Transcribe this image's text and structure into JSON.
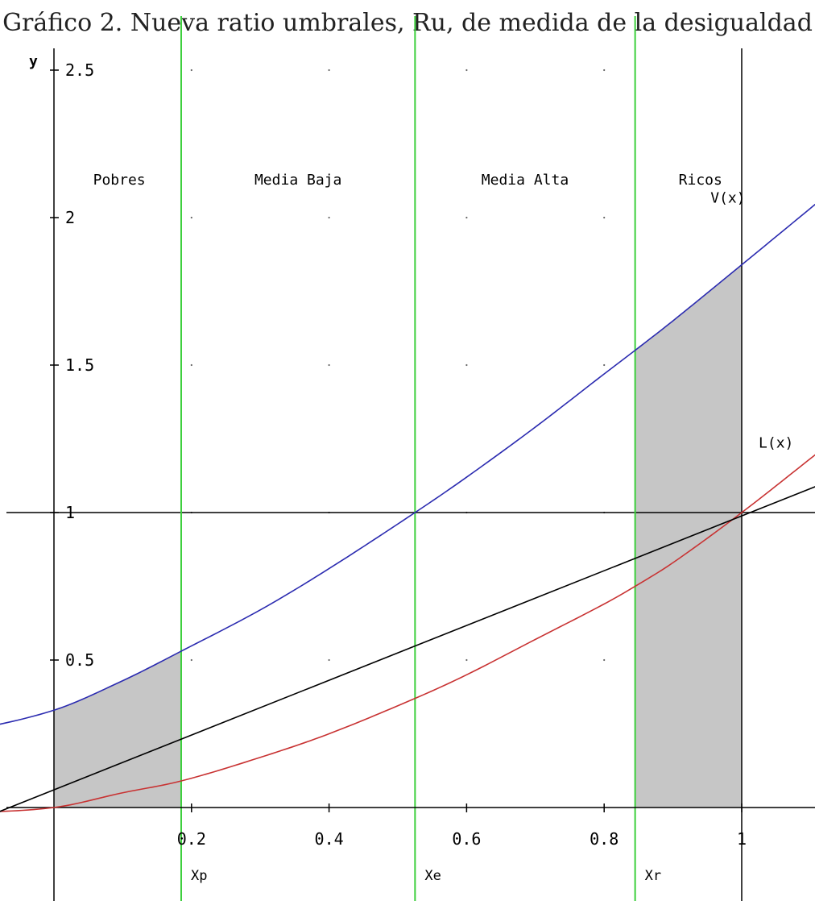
{
  "chart_data": {
    "type": "line",
    "title": "Gráfico 2. Nueva ratio umbrales, Ru, de medida de la desigualdad",
    "ylabel": "y",
    "xlabel": "",
    "xlim": [
      -0.14,
      1.12
    ],
    "ylim": [
      -0.25,
      2.62
    ],
    "grid": "dots",
    "x_ticks": [
      {
        "value": 0.2,
        "label": "0.2"
      },
      {
        "value": 0.4,
        "label": "0.4"
      },
      {
        "value": 0.6,
        "label": "0.6"
      },
      {
        "value": 0.8,
        "label": "0.8"
      },
      {
        "value": 1,
        "label": "1"
      }
    ],
    "y_ticks": [
      {
        "value": 0.5,
        "label": "0.5"
      },
      {
        "value": 1,
        "label": "1"
      },
      {
        "value": 1.5,
        "label": "1.5"
      },
      {
        "value": 2,
        "label": "2"
      },
      {
        "value": 2.5,
        "label": "2.5"
      }
    ],
    "thresholds": [
      {
        "name": "Xp",
        "x": 0.185
      },
      {
        "name": "Xe",
        "x": 0.525
      },
      {
        "name": "Xr",
        "x": 0.845
      }
    ],
    "regions": [
      {
        "label": "Pobres",
        "x": 0.095
      },
      {
        "label": "Media Baja",
        "x": 0.355
      },
      {
        "label": "Media Alta",
        "x": 0.685
      },
      {
        "label": "Ricos",
        "x": 0.94
      }
    ],
    "shaded_intervals": [
      [
        0,
        0.185
      ],
      [
        0.845,
        1
      ]
    ],
    "series": [
      {
        "name": "V(x)",
        "color": "#2b2bb0",
        "label_x": 0.98,
        "label_y": 2.05,
        "x": [
          -0.14,
          0,
          0.1,
          0.185,
          0.3,
          0.4,
          0.525,
          0.6,
          0.7,
          0.8,
          0.845,
          0.9,
          1,
          1.12
        ],
        "y": [
          0.25,
          0.33,
          0.43,
          0.53,
          0.67,
          0.81,
          1.0,
          1.12,
          1.29,
          1.47,
          1.55,
          1.65,
          1.84,
          2.07
        ]
      },
      {
        "name": "L(x)",
        "color": "#c83232",
        "label_x": 1.05,
        "label_y": 1.22,
        "x": [
          -0.14,
          0,
          0.1,
          0.185,
          0.3,
          0.4,
          0.525,
          0.6,
          0.7,
          0.8,
          0.845,
          0.9,
          1,
          1.12
        ],
        "y": [
          -0.02,
          0.0,
          0.05,
          0.09,
          0.17,
          0.25,
          0.37,
          0.45,
          0.57,
          0.69,
          0.75,
          0.83,
          1.0,
          1.22
        ]
      },
      {
        "name": "",
        "color": "#000000",
        "x": [
          -0.14,
          1.12
        ],
        "y": [
          -0.07,
          1.1
        ]
      }
    ],
    "reference_lines": {
      "horizontal_y": 1,
      "vertical_x": 1
    }
  }
}
